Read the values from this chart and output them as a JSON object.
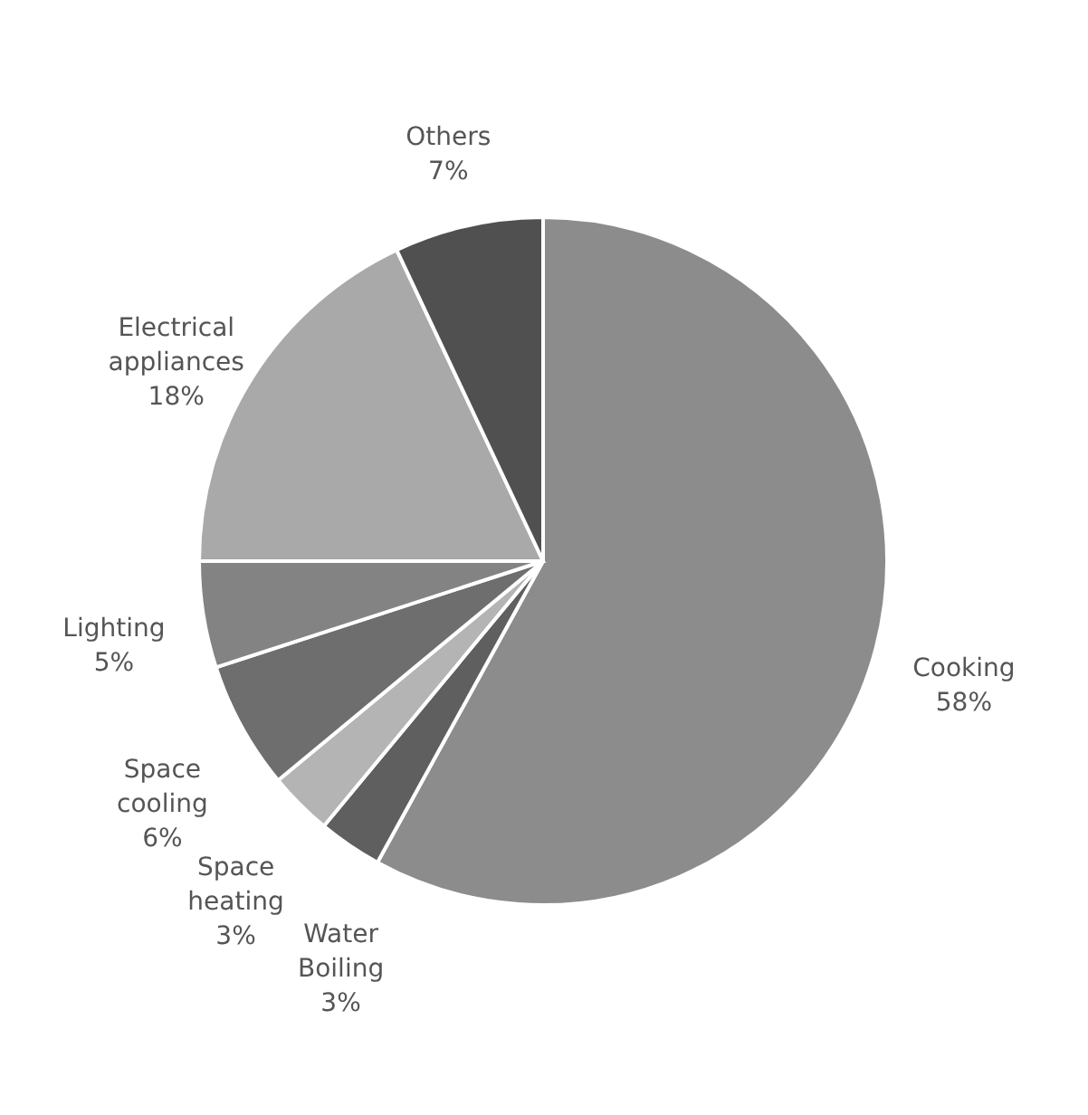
{
  "chart_data": {
    "type": "pie",
    "categories": [
      "Cooking",
      "Water Boiling",
      "Space heating",
      "Space cooling",
      "Lighting",
      "Electrical appliances",
      "Others"
    ],
    "values": [
      58,
      3,
      3,
      6,
      5,
      18,
      7
    ],
    "value_labels": [
      "58%",
      "3%",
      "3%",
      "6%",
      "5%",
      "18%",
      "7%"
    ],
    "colors": [
      "#8c8c8c",
      "#5f5f5f",
      "#b4b4b4",
      "#6e6e6e",
      "#838383",
      "#a9a9a9",
      "#505050"
    ],
    "legend": false
  }
}
